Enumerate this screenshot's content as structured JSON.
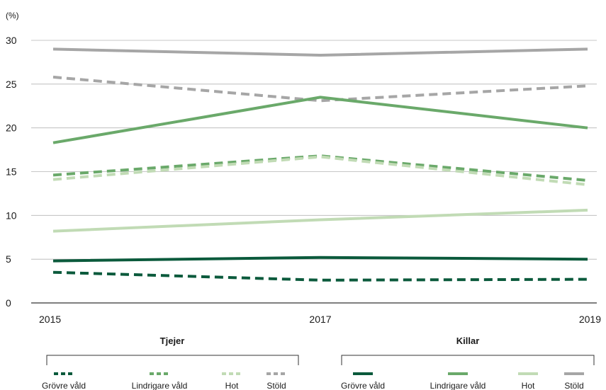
{
  "chart_data": {
    "type": "line",
    "unit_label": "(%)",
    "x": [
      "2015",
      "2017",
      "2019"
    ],
    "ylim": [
      0,
      30
    ],
    "yticks": [
      "0",
      "5",
      "10",
      "15",
      "20",
      "25",
      "30"
    ],
    "grid": true,
    "legend_groups": [
      {
        "title": "Tjejer",
        "style": "dashed"
      },
      {
        "title": "Killar",
        "style": "solid"
      }
    ],
    "series": [
      {
        "name": "Grövre våld",
        "group": "Tjejer",
        "style": "dashed",
        "color": "#0b5a3c",
        "values": [
          3.5,
          2.6,
          2.7
        ]
      },
      {
        "name": "Lindrigare våld",
        "group": "Tjejer",
        "style": "dashed",
        "color": "#6aa96a",
        "values": [
          14.6,
          16.8,
          14.0
        ]
      },
      {
        "name": "Hot",
        "group": "Tjejer",
        "style": "dashed",
        "color": "#c1dbb5",
        "values": [
          14.1,
          16.7,
          13.5
        ]
      },
      {
        "name": "Stöld",
        "group": "Tjejer",
        "style": "dashed",
        "color": "#a6a6a6",
        "values": [
          25.8,
          23.1,
          24.8
        ]
      },
      {
        "name": "Grövre våld",
        "group": "Killar",
        "style": "solid",
        "color": "#0b5a3c",
        "values": [
          4.8,
          5.2,
          5.0
        ]
      },
      {
        "name": "Lindrigare våld",
        "group": "Killar",
        "style": "solid",
        "color": "#6aa96a",
        "values": [
          18.3,
          23.5,
          20.0
        ]
      },
      {
        "name": "Hot",
        "group": "Killar",
        "style": "solid",
        "color": "#c1dbb5",
        "values": [
          8.2,
          9.5,
          10.6
        ]
      },
      {
        "name": "Stöld",
        "group": "Killar",
        "style": "solid",
        "color": "#a6a6a6",
        "values": [
          29.0,
          28.3,
          29.0
        ]
      }
    ]
  }
}
